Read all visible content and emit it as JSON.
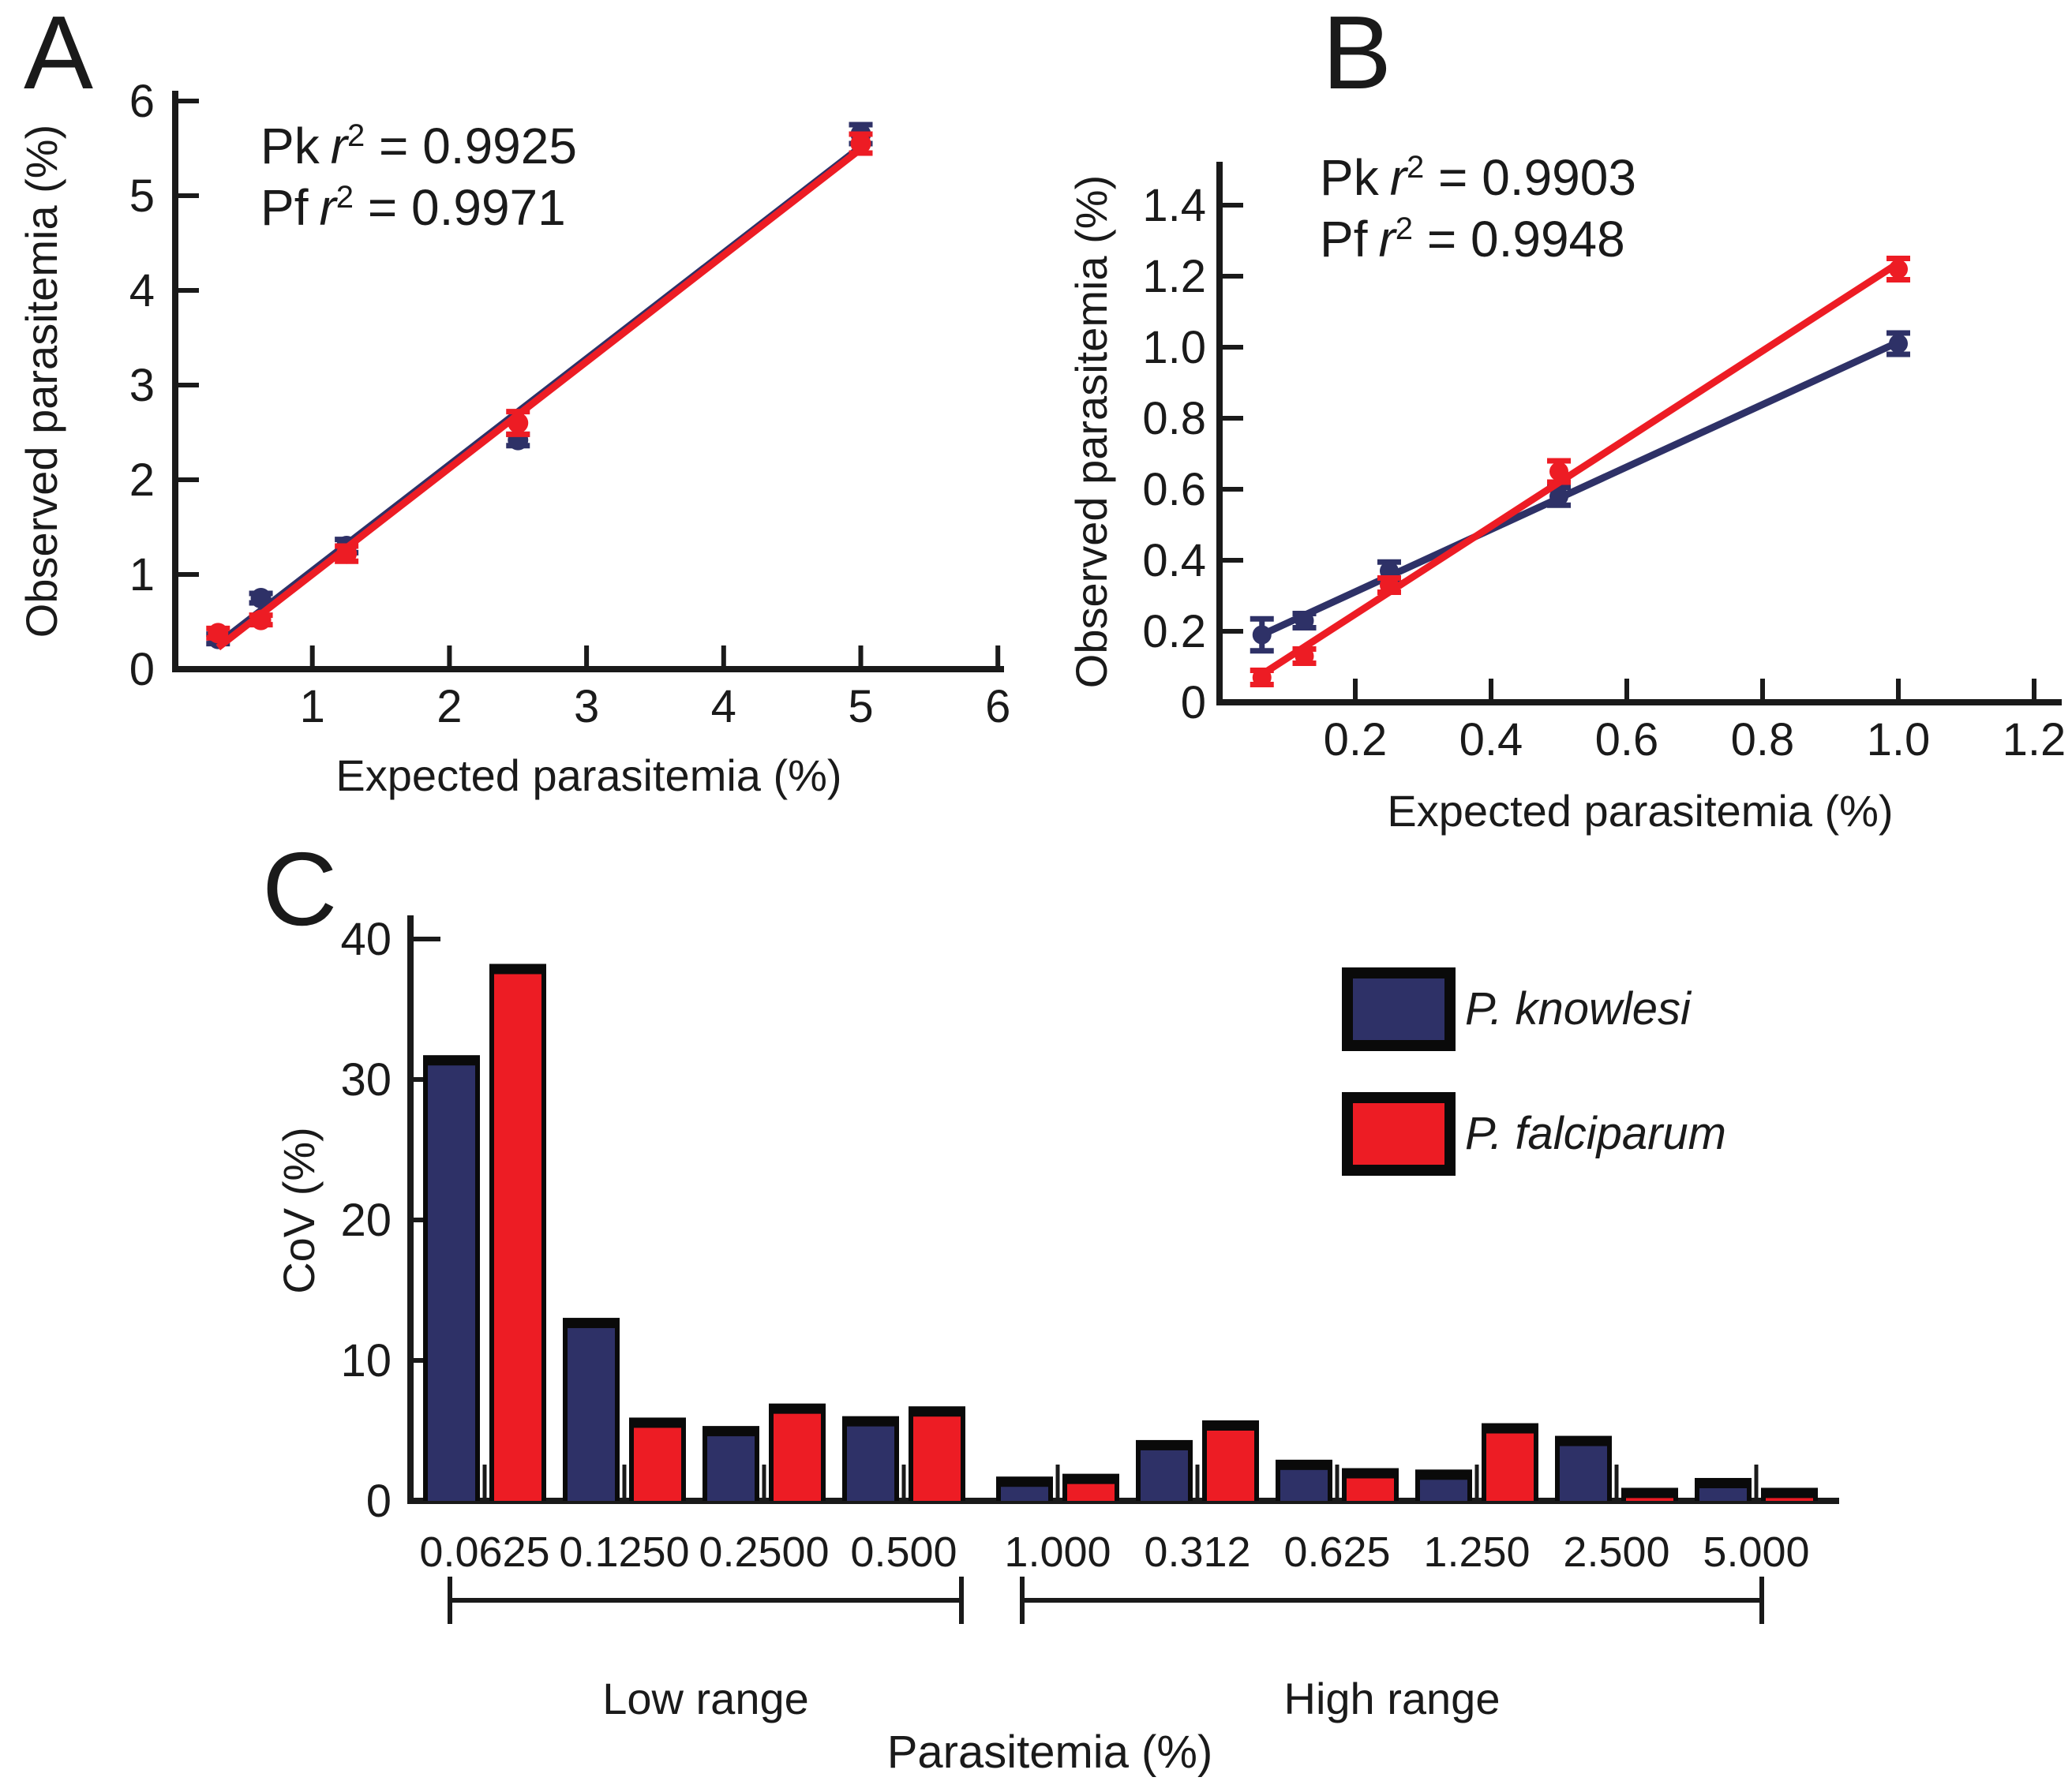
{
  "figure": {
    "panel_labels": [
      "A",
      "B",
      "C"
    ],
    "colors": {
      "pk_navy": "#2e3167",
      "pf_red": "#ed1c24",
      "pk_text_blue": "#2456a8",
      "axis_black": "#1a1a1a"
    }
  },
  "chart_data": [
    {
      "id": "A",
      "type": "scatter",
      "xlabel": "Expected parasitemia (%)",
      "ylabel": "Observed parasitemia (%)",
      "xlim": [
        0,
        6.05
      ],
      "ylim": [
        0,
        6.1
      ],
      "xticks": [
        "1",
        "2",
        "3",
        "4",
        "5",
        "6"
      ],
      "yticks": [
        "0",
        "1",
        "2",
        "3",
        "4",
        "5",
        "6"
      ],
      "annotations": [
        {
          "series": "Pk",
          "var": "r",
          "sup": "2",
          "eq": " = ",
          "value": "0.9925",
          "color": "#2456a8"
        },
        {
          "series": "Pf",
          "var": "r",
          "sup": "2",
          "eq": " = ",
          "value": "0.9971",
          "color": "#ed1c24"
        }
      ],
      "series": [
        {
          "name": "Pk",
          "label": "P. knowlesi",
          "color": "#2e3167",
          "fit": true,
          "x": [
            0.3125,
            0.625,
            1.25,
            2.5,
            5.0
          ],
          "y": [
            0.32,
            0.75,
            1.3,
            2.42,
            5.65
          ],
          "yerr": [
            0.05,
            0.05,
            0.07,
            0.06,
            0.1
          ]
        },
        {
          "name": "Pf",
          "label": "P. falciparum",
          "color": "#ed1c24",
          "fit": true,
          "x": [
            0.3125,
            0.625,
            1.25,
            2.5,
            5.0
          ],
          "y": [
            0.38,
            0.52,
            1.22,
            2.6,
            5.55
          ],
          "yerr": [
            0.05,
            0.05,
            0.08,
            0.12,
            0.1
          ]
        }
      ]
    },
    {
      "id": "B",
      "type": "scatter",
      "xlabel": "Expected parasitemia (%)",
      "ylabel": "Observed parasitemia (%)",
      "xlim": [
        0,
        1.24
      ],
      "ylim": [
        0,
        1.52
      ],
      "xticks": [
        "0.2",
        "0.4",
        "0.6",
        "0.8",
        "1.0",
        "1.2"
      ],
      "yticks": [
        "0",
        "0.2",
        "0.4",
        "0.6",
        "0.8",
        "1.0",
        "1.2",
        "1.4"
      ],
      "annotations": [
        {
          "series": "Pk",
          "var": "r",
          "sup": "2",
          "eq": " = ",
          "value": "0.9903",
          "color": "#2456a8"
        },
        {
          "series": "Pf",
          "var": "r",
          "sup": "2",
          "eq": " = ",
          "value": "0.9948",
          "color": "#ed1c24"
        }
      ],
      "series": [
        {
          "name": "Pk",
          "label": "P. knowlesi",
          "color": "#2e3167",
          "fit": true,
          "x": [
            0.0625,
            0.125,
            0.25,
            0.5,
            1.0
          ],
          "y": [
            0.19,
            0.23,
            0.37,
            0.58,
            1.01
          ],
          "yerr": [
            0.045,
            0.02,
            0.025,
            0.025,
            0.03
          ]
        },
        {
          "name": "Pf",
          "label": "P. falciparum",
          "color": "#ed1c24",
          "fit": true,
          "x": [
            0.0625,
            0.125,
            0.25,
            0.5,
            1.0
          ],
          "y": [
            0.07,
            0.13,
            0.33,
            0.65,
            1.22
          ],
          "yerr": [
            0.02,
            0.02,
            0.02,
            0.03,
            0.03
          ]
        }
      ]
    },
    {
      "id": "C",
      "type": "bar",
      "xlabel": "Parasitemia (%)",
      "ylabel": "CoV (%)",
      "ylim": [
        0,
        40
      ],
      "yticks": [
        "0",
        "10",
        "20",
        "30",
        "40"
      ],
      "categories": [
        "0.0625",
        "0.1250",
        "0.2500",
        "0.500",
        "1.000",
        "0.312",
        "0.625",
        "1.250",
        "2.500",
        "5.000"
      ],
      "series": [
        {
          "name": "P. knowlesi",
          "color": "#2e3167",
          "values": [
            31.0,
            12.3,
            4.6,
            5.3,
            1.0,
            3.6,
            2.2,
            1.5,
            3.9,
            0.9
          ]
        },
        {
          "name": "P. falciparum",
          "color": "#ed1c24",
          "values": [
            37.5,
            5.2,
            6.2,
            6.0,
            1.2,
            5.0,
            1.6,
            4.8,
            0.2,
            0.2
          ]
        }
      ],
      "legend": [
        {
          "label": "P. knowlesi",
          "color": "#2e3167"
        },
        {
          "label": "P. falciparum",
          "color": "#ed1c24"
        }
      ],
      "range_brackets": [
        {
          "label": "Low range",
          "from": 0,
          "to": 3
        },
        {
          "label": "High range",
          "from": 4,
          "to": 9
        }
      ]
    }
  ]
}
